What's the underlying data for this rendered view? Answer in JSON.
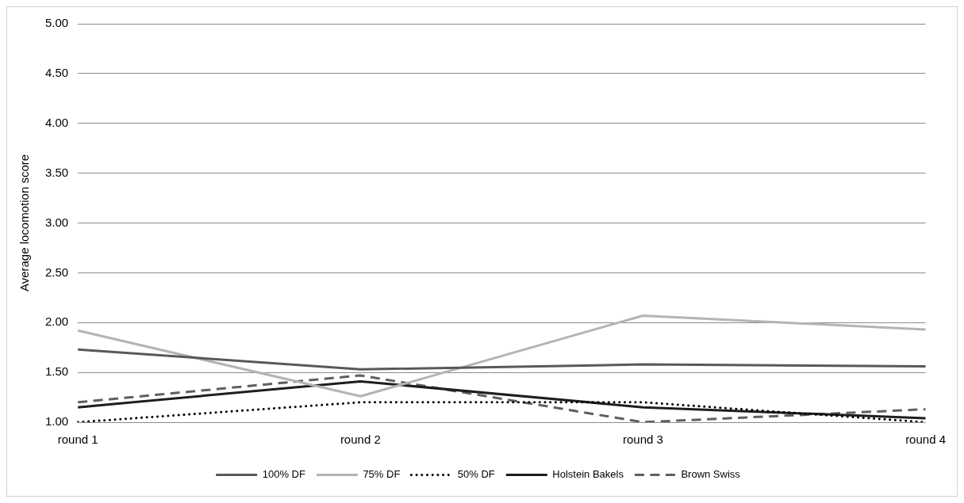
{
  "chart_data": {
    "type": "line",
    "ylabel": "Average locomotion score",
    "categories": [
      "round 1",
      "round 2",
      "round 3",
      "round 4"
    ],
    "series": [
      {
        "name": "100% DF",
        "color": "#595959",
        "line_style": "solid",
        "values": [
          1.73,
          1.53,
          1.58,
          1.56
        ]
      },
      {
        "name": "75% DF",
        "color": "#b4b4b4",
        "line_style": "solid",
        "values": [
          1.92,
          1.26,
          2.07,
          1.93
        ]
      },
      {
        "name": "50% DF",
        "color": "#000000",
        "line_style": "dotted",
        "values": [
          1.0,
          1.2,
          1.2,
          1.0
        ]
      },
      {
        "name": "Holstein Bakels",
        "color": "#1e1e1e",
        "line_style": "solid",
        "values": [
          1.15,
          1.41,
          1.15,
          1.04
        ]
      },
      {
        "name": "Brown Swiss",
        "color": "#5f5f5f",
        "line_style": "dashed",
        "values": [
          1.2,
          1.47,
          1.0,
          1.13
        ]
      }
    ],
    "ylim": [
      1,
      5
    ],
    "yticks": [
      {
        "value": 1,
        "label": "1.00"
      },
      {
        "value": 1.5,
        "label": "1.50"
      },
      {
        "value": 2,
        "label": "2.00"
      },
      {
        "value": 2.5,
        "label": "2.50"
      },
      {
        "value": 3,
        "label": "3.00"
      },
      {
        "value": 3.5,
        "label": "3.50"
      },
      {
        "value": 4,
        "label": "4.00"
      },
      {
        "value": 4.5,
        "label": "4.50"
      },
      {
        "value": 5,
        "label": "5.00"
      }
    ],
    "grid": "y",
    "legend": "bottom",
    "marker": "none"
  }
}
